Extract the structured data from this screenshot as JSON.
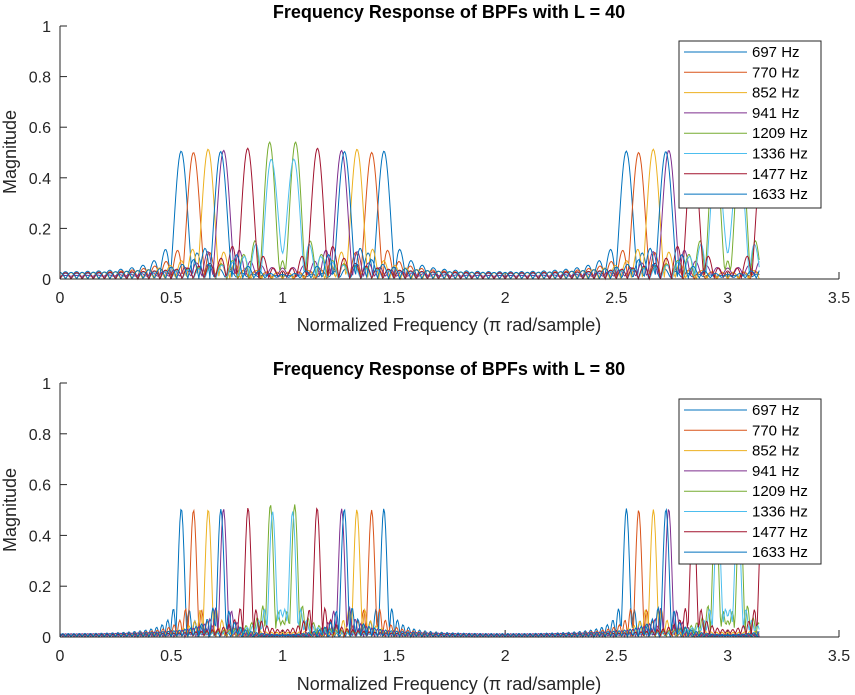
{
  "chart_data": [
    {
      "type": "line",
      "title": "Frequency Response of BPFs with L = 40",
      "xlabel": "Normalized Frequency (π rad/sample)",
      "ylabel": "Magnitude",
      "xlim": [
        0,
        3.5
      ],
      "ylim": [
        0,
        1
      ],
      "xticks": [
        "0",
        "0.5",
        "1",
        "1.5",
        "2",
        "2.5",
        "3",
        "3.5"
      ],
      "yticks": [
        "0",
        "0.2",
        "0.4",
        "0.6",
        "0.8",
        "1"
      ],
      "grid": false,
      "legend_location": "top-right",
      "filter_length": 40,
      "x_range": [
        0,
        3.1416
      ],
      "series": [
        {
          "name": "697 Hz",
          "center": 0.545,
          "color": "#0072BD"
        },
        {
          "name": "770 Hz",
          "center": 0.6,
          "color": "#D95319"
        },
        {
          "name": "852 Hz",
          "center": 0.666,
          "color": "#EDB120"
        },
        {
          "name": "941 Hz",
          "center": 0.735,
          "color": "#7E2F8E"
        },
        {
          "name": "1209 Hz",
          "center": 0.946,
          "color": "#77AC30"
        },
        {
          "name": "1336 Hz",
          "center": 1.045,
          "color": "#4DBEEE"
        },
        {
          "name": "1477 Hz",
          "center": 1.155,
          "color": "#A2142F"
        },
        {
          "name": "1633 Hz",
          "center": 1.277,
          "color": "#0072BD"
        }
      ]
    },
    {
      "type": "line",
      "title": "Frequency Response of BPFs with L = 80",
      "xlabel": "Normalized Frequency (π rad/sample)",
      "ylabel": "Magnitude",
      "xlim": [
        0,
        3.5
      ],
      "ylim": [
        0,
        1
      ],
      "xticks": [
        "0",
        "0.5",
        "1",
        "1.5",
        "2",
        "2.5",
        "3",
        "3.5"
      ],
      "yticks": [
        "0",
        "0.2",
        "0.4",
        "0.6",
        "0.8",
        "1"
      ],
      "grid": false,
      "legend_location": "top-right",
      "filter_length": 80,
      "x_range": [
        0,
        3.1416
      ],
      "series": [
        {
          "name": "697 Hz",
          "center": 0.545,
          "color": "#0072BD"
        },
        {
          "name": "770 Hz",
          "center": 0.6,
          "color": "#D95319"
        },
        {
          "name": "852 Hz",
          "center": 0.666,
          "color": "#EDB120"
        },
        {
          "name": "941 Hz",
          "center": 0.735,
          "color": "#7E2F8E"
        },
        {
          "name": "1209 Hz",
          "center": 0.946,
          "color": "#77AC30"
        },
        {
          "name": "1336 Hz",
          "center": 1.045,
          "color": "#4DBEEE"
        },
        {
          "name": "1477 Hz",
          "center": 1.155,
          "color": "#A2142F"
        },
        {
          "name": "1633 Hz",
          "center": 1.277,
          "color": "#0072BD"
        }
      ]
    }
  ]
}
